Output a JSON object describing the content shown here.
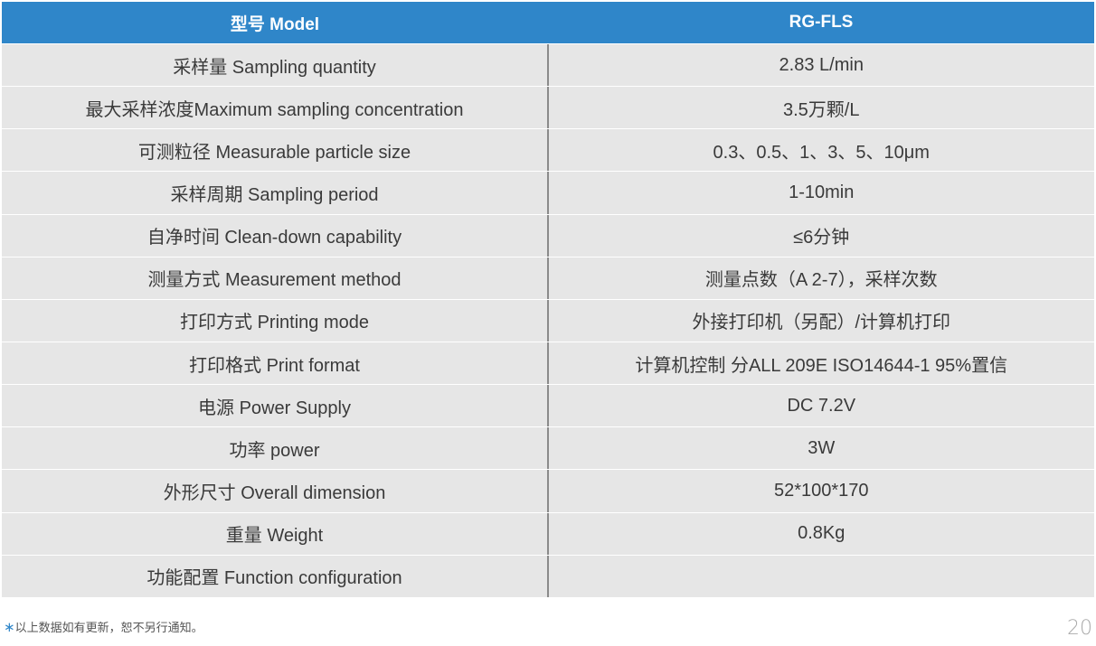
{
  "table": {
    "header": {
      "model_label": "型号 Model",
      "model_value": "RG-FLS"
    },
    "rows": [
      {
        "label": "采样量 Sampling quantity",
        "value": "2.83 L/min"
      },
      {
        "label": "最大采样浓度Maximum sampling concentration",
        "value": "3.5万颗/L"
      },
      {
        "label": "可测粒径 Measurable particle size",
        "value": "0.3、0.5、1、3、5、10μm"
      },
      {
        "label": "采样周期 Sampling period",
        "value": "1-10min"
      },
      {
        "label": "自净时间 Clean-down capability",
        "value": "≤6分钟"
      },
      {
        "label": "测量方式 Measurement method",
        "value": "测量点数（A 2-7），采样次数"
      },
      {
        "label": "打印方式 Printing mode",
        "value": "外接打印机（另配）/计算机打印"
      },
      {
        "label": "打印格式  Print format",
        "value": "计算机控制 分ALL 209E ISO14644-1 95%置信"
      },
      {
        "label": "电源 Power Supply",
        "value": "DC 7.2V"
      },
      {
        "label": "功率 power",
        "value": "3W"
      },
      {
        "label": "外形尺寸 Overall dimension",
        "value": "52*100*170"
      },
      {
        "label": "重量 Weight",
        "value": "0.8Kg"
      },
      {
        "label": "功能配置 Function configuration",
        "value": ""
      }
    ]
  },
  "footnote": {
    "star": "∗",
    "text": "以上数据如有更新，恕不另行通知。"
  },
  "page_number": "20",
  "colors": {
    "header_bg": "#2f86c9",
    "row_bg": "#e6e6e6"
  }
}
